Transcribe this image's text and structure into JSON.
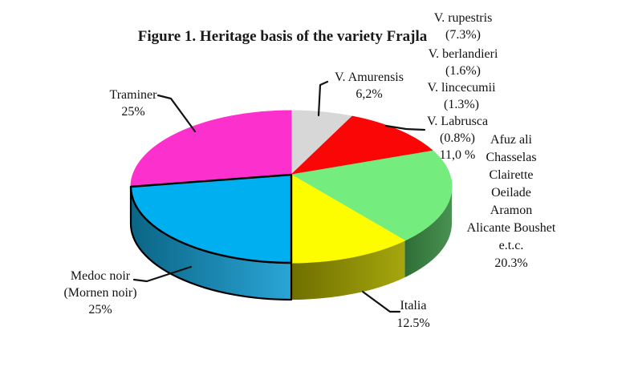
{
  "figure": {
    "title": "Figure 1. Heritage basis of the variety Frajla"
  },
  "chart_data": {
    "type": "pie",
    "style": "3d",
    "title": "Figure 1. Heritage basis of the variety Frajla",
    "start_angle_deg": 90,
    "direction": "clockwise",
    "legend_position": "none",
    "slices": [
      {
        "label": "V. Amurensis",
        "value_pct": 6.2,
        "color": "#d7d7d7"
      },
      {
        "label": "Afuz ali",
        "value_pct": 11.0,
        "color": "#fb0606"
      },
      {
        "label": "Chasselas Clairette Oeilade Aramon Alicante Boushet e.t.c.",
        "value_pct": 20.3,
        "color": "#74ec7e",
        "side_colors": [
          "#2e6e36",
          "#4a9152"
        ]
      },
      {
        "label": "Italia",
        "value_pct": 12.5,
        "color": "#fdfd00",
        "side_colors": [
          "#6f6f00",
          "#a6a60e"
        ]
      },
      {
        "label": "Medoc noir (Mornen noir)",
        "value_pct": 25,
        "color": "#00aff0",
        "side_colors": [
          "#0b6585",
          "#2aa5d6"
        ],
        "outlined": true
      },
      {
        "label": "Traminer",
        "value_pct": 25,
        "color": "#fc31cd"
      }
    ],
    "sub_annotations": [
      {
        "label": "V. rupestris",
        "value_pct": 7.3
      },
      {
        "label": "V. berlandieri",
        "value_pct": 1.6
      },
      {
        "label": "V. lincecumii",
        "value_pct": 1.3
      },
      {
        "label": "V. Labrusca",
        "value_pct": 0.8
      }
    ]
  },
  "labels": {
    "rupestris": {
      "lines": [
        "V. rupestris",
        "(7.3%)"
      ]
    },
    "berlandieri": {
      "lines": [
        "V. berlandieri",
        "(1.6%)"
      ]
    },
    "lincecumii": {
      "lines": [
        "V. lincecumii",
        "(1.3%)"
      ]
    },
    "labrusca": {
      "lines": [
        "V. Labrusca",
        "(0.8%)",
        "11,0 %"
      ]
    },
    "group": {
      "lines": [
        "Afuz ali",
        "Chasselas",
        "Clairette",
        "Oeilade",
        "Aramon",
        "Alicante Boushet",
        "e.t.c.",
        "20.3%"
      ]
    },
    "amurensis": {
      "lines": [
        "V. Amurensis",
        "6,2%"
      ]
    },
    "traminer": {
      "lines": [
        "Traminer",
        "25%"
      ]
    },
    "medoc": {
      "lines": [
        "Medoc noir",
        "(Mornen noir)",
        "25%"
      ]
    },
    "italia": {
      "lines": [
        "Italia",
        "12.5%"
      ]
    }
  }
}
